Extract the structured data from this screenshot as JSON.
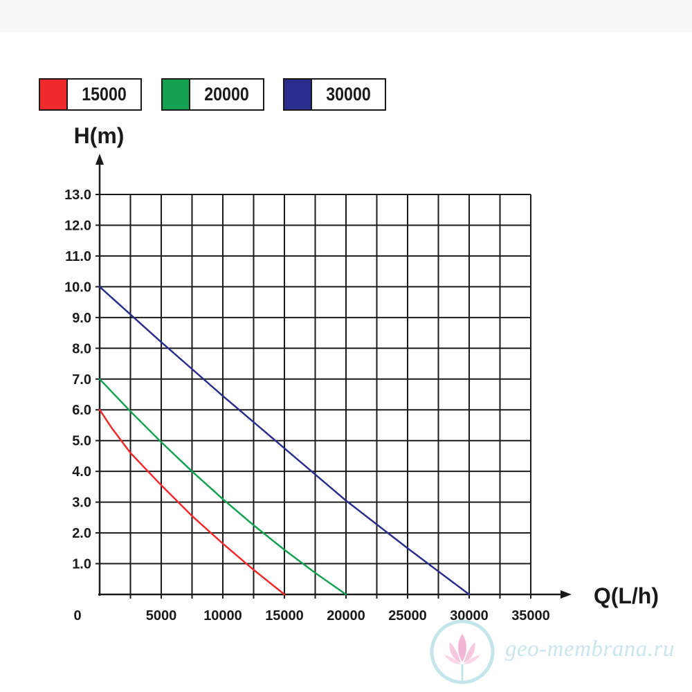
{
  "chart_data": {
    "type": "line",
    "xlabel": "Q(L/h)",
    "ylabel": "H(m)",
    "xlim": [
      0,
      35000
    ],
    "ylim": [
      0,
      13
    ],
    "x_ticks": [
      "0",
      "5000",
      "10000",
      "15000",
      "20000",
      "25000",
      "30000",
      "35000"
    ],
    "y_ticks": [
      "1.0",
      "2.0",
      "3.0",
      "4.0",
      "5.0",
      "6.0",
      "7.0",
      "8.0",
      "9.0",
      "10.0",
      "11.0",
      "12.0",
      "13.0"
    ],
    "x_grid_step": 2500,
    "y_grid_step": 1,
    "grid": true,
    "legend_position": "top",
    "series": [
      {
        "name": "15000",
        "color": "#ee2a2a",
        "x": [
          0,
          1000,
          2500,
          5000,
          7500,
          10000,
          12500,
          15000
        ],
        "y": [
          6.0,
          5.4,
          4.6,
          3.55,
          2.55,
          1.65,
          0.8,
          0.0
        ]
      },
      {
        "name": "20000",
        "color": "#14a051",
        "x": [
          0,
          2500,
          5000,
          7500,
          10000,
          12500,
          15000,
          17500,
          20000
        ],
        "y": [
          7.0,
          5.95,
          4.95,
          4.0,
          3.1,
          2.25,
          1.45,
          0.7,
          0.0
        ]
      },
      {
        "name": "30000",
        "color": "#2b2d8c",
        "x": [
          0,
          5000,
          10000,
          15000,
          20000,
          25000,
          30000
        ],
        "y": [
          10.0,
          8.2,
          6.45,
          4.75,
          3.05,
          1.5,
          0.0
        ]
      }
    ]
  },
  "watermark": {
    "text": "geo-membrana.ru",
    "colors": {
      "text": "#c9e6ec",
      "flower": "#f2b6d4",
      "ring": "#c4e6ea"
    }
  }
}
